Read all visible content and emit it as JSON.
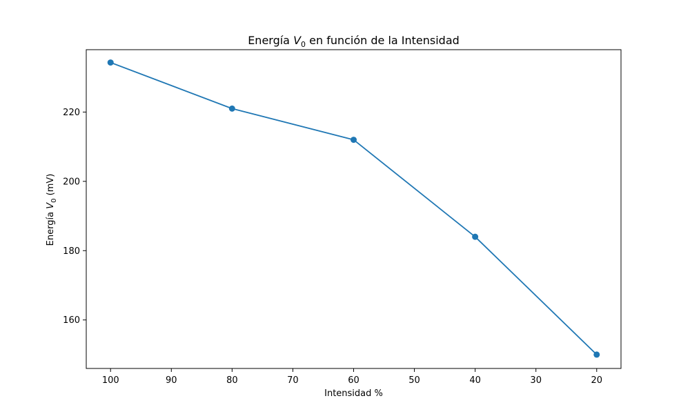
{
  "chart_data": {
    "type": "line",
    "title": {
      "prefix": "Energía ",
      "var": "V",
      "sub": "0",
      "suffix": " en función de la Intensidad"
    },
    "xlabel": "Intensidad %",
    "ylabel": {
      "prefix": "Energía ",
      "var": "V",
      "sub": "0",
      "suffix": " (mV)"
    },
    "x_inverted": true,
    "xlim": [
      104,
      16
    ],
    "ylim": [
      146,
      238
    ],
    "xticks": [
      100,
      90,
      80,
      70,
      60,
      50,
      40,
      30,
      20
    ],
    "yticks": [
      160,
      180,
      200,
      220
    ],
    "grid": false,
    "series": [
      {
        "x": [
          100,
          80,
          60,
          40,
          20
        ],
        "y": [
          234.3,
          221,
          212,
          184,
          150
        ],
        "color": "#1f77b4",
        "marker": "circle"
      }
    ]
  }
}
